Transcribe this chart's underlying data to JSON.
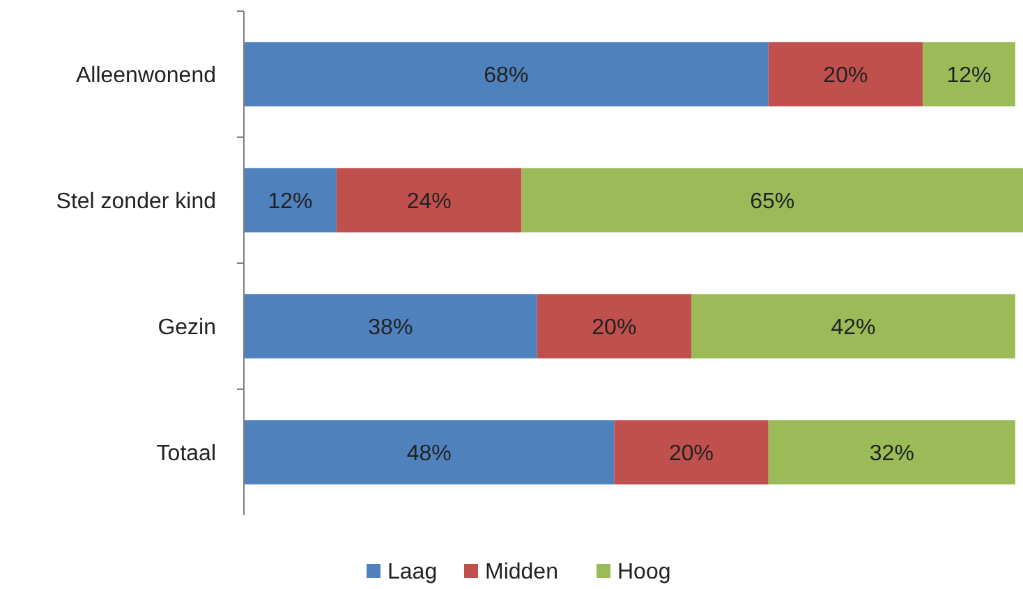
{
  "chart_data": {
    "type": "bar",
    "orientation": "horizontal",
    "stacked": true,
    "legend": "bottom",
    "categories": [
      "Alleenwonend",
      "Stel zonder kind",
      "Gezin",
      "Totaal"
    ],
    "series": [
      {
        "name": "Laag",
        "color": "#4f81bd",
        "values": [
          68,
          12,
          38,
          48
        ],
        "value_labels": [
          "68%",
          "12%",
          "38%",
          "48%"
        ]
      },
      {
        "name": "Midden",
        "color": "#c0504d",
        "values": [
          20,
          24,
          20,
          20
        ],
        "value_labels": [
          "20%",
          "24%",
          "20%",
          "20%"
        ]
      },
      {
        "name": "Hoog",
        "color": "#9bbb59",
        "values": [
          12,
          65,
          42,
          32
        ],
        "value_labels": [
          "12%",
          "65%",
          "42%",
          "32%"
        ]
      }
    ]
  }
}
